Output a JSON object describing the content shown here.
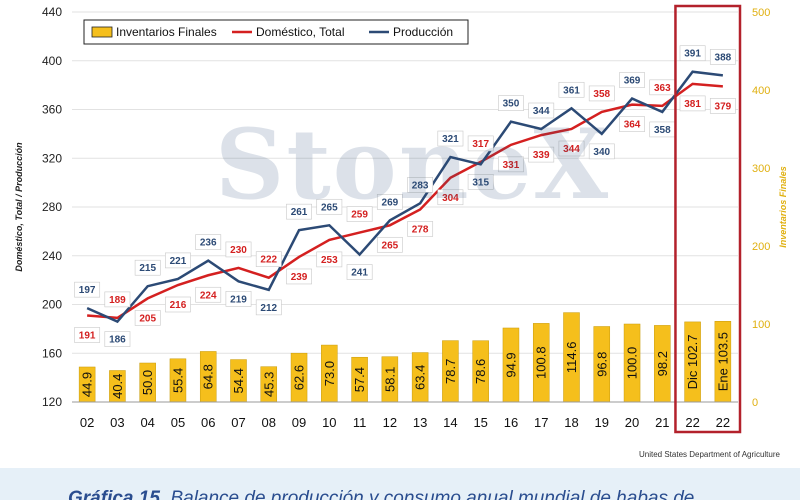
{
  "chart_data": {
    "type": "bar+line",
    "categories": [
      "02",
      "03",
      "04",
      "05",
      "06",
      "07",
      "08",
      "09",
      "10",
      "11",
      "12",
      "13",
      "14",
      "15",
      "16",
      "17",
      "18",
      "19",
      "20",
      "21",
      "22",
      "22"
    ],
    "bar_labels": [
      "44.9",
      "40.4",
      "50.0",
      "55.4",
      "64.8",
      "54.4",
      "45.3",
      "62.6",
      "73.0",
      "57.4",
      "58.1",
      "63.4",
      "78.7",
      "78.6",
      "94.9",
      "100.8",
      "114.6",
      "96.8",
      "100.0",
      "98.2",
      "Dic 102.7",
      "Ene 103.5"
    ],
    "series": [
      {
        "name": "Inventarios Finales",
        "axis": "right",
        "type": "bar",
        "values": [
          44.9,
          40.4,
          50.0,
          55.4,
          64.8,
          54.4,
          45.3,
          62.6,
          73.0,
          57.4,
          58.1,
          63.4,
          78.7,
          78.6,
          94.9,
          100.8,
          114.6,
          96.8,
          100.0,
          98.2,
          102.7,
          103.5
        ]
      },
      {
        "name": "Doméstico, Total",
        "axis": "left",
        "type": "line",
        "values": [
          191,
          189,
          205,
          216,
          224,
          230,
          222,
          239,
          253,
          259,
          265,
          278,
          304,
          317,
          331,
          339,
          344,
          358,
          364,
          363,
          381,
          379
        ]
      },
      {
        "name": "Producción",
        "axis": "left",
        "type": "line",
        "values": [
          197,
          186,
          215,
          221,
          236,
          219,
          212,
          261,
          265,
          241,
          269,
          283,
          321,
          315,
          350,
          344,
          361,
          340,
          369,
          358,
          391,
          388
        ]
      }
    ],
    "left_axis": {
      "label": "Doméstico, Total / Producción",
      "ticks": [
        120,
        160,
        200,
        240,
        280,
        320,
        360,
        400,
        440
      ],
      "range": [
        120,
        440
      ]
    },
    "right_axis": {
      "label": "Inventarios Finales",
      "ticks": [
        0,
        100,
        200,
        300,
        400,
        500
      ],
      "range": [
        0,
        500
      ]
    },
    "legend_position": "top-left",
    "highlight_categories": [
      20,
      21
    ],
    "colors": {
      "bar": "#f5bf1c",
      "bar_edge": "#c79a0a",
      "domestic": "#d42020",
      "production": "#2c4a75",
      "highlight": "#b3212b",
      "right_axis_text": "#e0b010"
    }
  },
  "watermark": "StoneX",
  "source": "United States Department of Agriculture",
  "caption": {
    "label": "Gráfica 15.",
    "text": " Balance de producción y consumo anual mundial de habas de"
  }
}
